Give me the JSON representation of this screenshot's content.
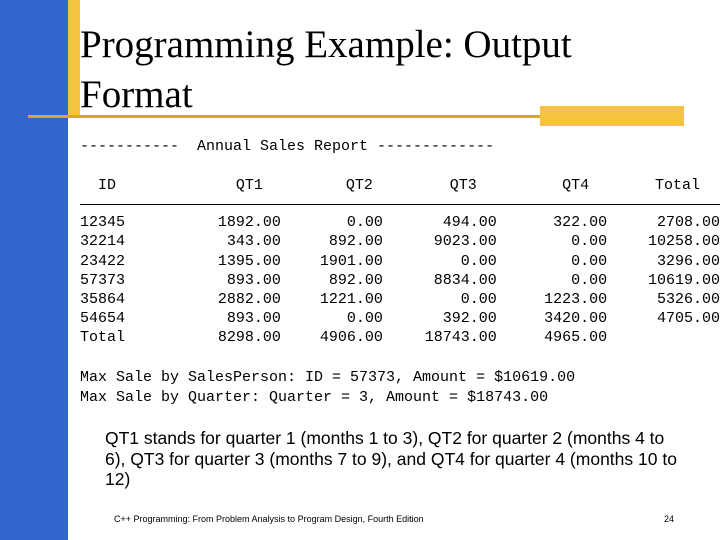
{
  "slide": {
    "title": "Programming Example: Output Format",
    "report_header": "-----------  Annual Sales Report -------------",
    "table": {
      "columns": [
        "ID",
        "QT1",
        "QT2",
        "QT3",
        "QT4",
        "Total"
      ],
      "rows": [
        [
          "12345",
          "1892.00",
          "0.00",
          "494.00",
          "322.00",
          "2708.00"
        ],
        [
          "32214",
          "343.00",
          "892.00",
          "9023.00",
          "0.00",
          "10258.00"
        ],
        [
          "23422",
          "1395.00",
          "1901.00",
          "0.00",
          "0.00",
          "3296.00"
        ],
        [
          "57373",
          "893.00",
          "892.00",
          "8834.00",
          "0.00",
          "10619.00"
        ],
        [
          "35864",
          "2882.00",
          "1221.00",
          "0.00",
          "1223.00",
          "5326.00"
        ],
        [
          "54654",
          "893.00",
          "0.00",
          "392.00",
          "3420.00",
          "4705.00"
        ],
        [
          "Total",
          "8298.00",
          "4906.00",
          "18743.00",
          "4965.00",
          ""
        ]
      ]
    },
    "summary_lines": [
      "Max Sale by SalesPerson: ID = 57373, Amount = $10619.00",
      "Max Sale by Quarter: Quarter = 3, Amount = $18743.00"
    ],
    "note": "QT1 stands for quarter 1 (months 1 to 3), QT2 for quarter 2 (months 4 to 6), QT3 for quarter 3 (months 7 to 9), and QT4 for quarter 4 (months 10 to 12)",
    "footer": "C++ Programming: From Problem Analysis to Program Design, Fourth Edition",
    "page_number": "24"
  },
  "colors": {
    "sidebar": "#3366cc",
    "accent": "#f5c242"
  }
}
